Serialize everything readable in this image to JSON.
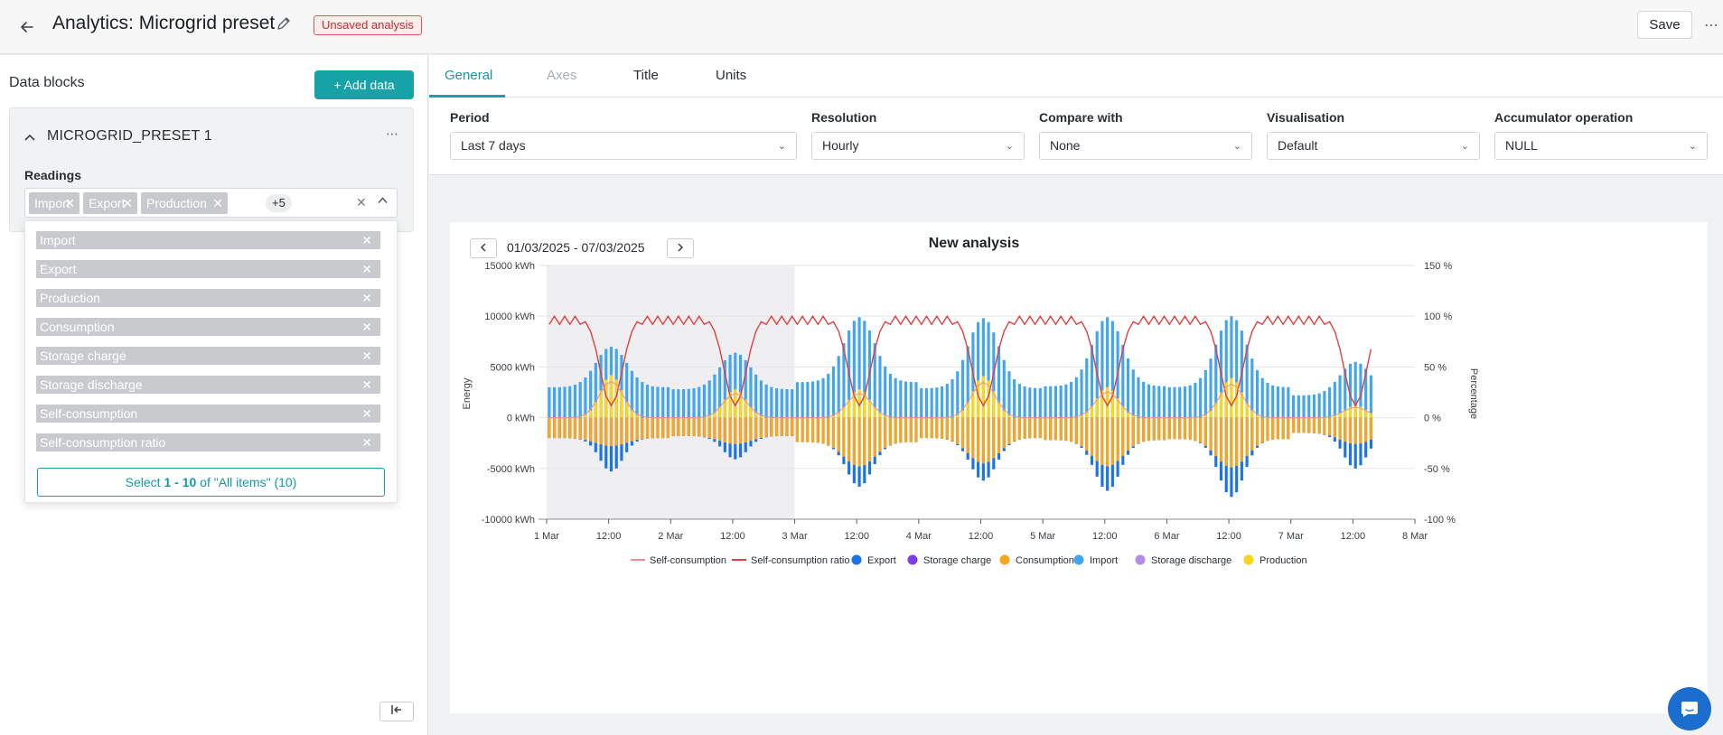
{
  "header": {
    "title": "Analytics: Microgrid preset",
    "badge": "Unsaved analysis",
    "save_label": "Save",
    "more_icon": "more-horizontal-icon"
  },
  "left_panel": {
    "title": "Data blocks",
    "add_label": "+ Add data",
    "block": {
      "name": "MICROGRID_PRESET 1",
      "readings_label": "Readings",
      "chips": [
        "Import",
        "Export",
        "Production"
      ],
      "more_count": "+5"
    },
    "dropdown": {
      "options": [
        "Import",
        "Export",
        "Production",
        "Consumption",
        "Storage charge",
        "Storage discharge",
        "Self-consumption",
        "Self-consumption ratio"
      ],
      "select_prefix": "Select ",
      "select_range": "1 - 10",
      "select_suffix": " of \"All items\" (10)"
    }
  },
  "tabs": [
    {
      "label": "General",
      "state": "active"
    },
    {
      "label": "Axes",
      "state": "disabled"
    },
    {
      "label": "Title",
      "state": "normal"
    },
    {
      "label": "Units",
      "state": "normal"
    }
  ],
  "settings": {
    "period": {
      "label": "Period",
      "value": "Last 7 days"
    },
    "resolution": {
      "label": "Resolution",
      "value": "Hourly"
    },
    "compare": {
      "label": "Compare with",
      "value": "None"
    },
    "visualisation": {
      "label": "Visualisation",
      "value": "Default"
    },
    "accumulator": {
      "label": "Accumulator operation",
      "value": "NULL"
    }
  },
  "date_range": "01/03/2025 - 07/03/2025",
  "chart_data": {
    "type": "bar",
    "title": "New analysis",
    "ylabel": "Energy",
    "y2label": "Percentage",
    "ylim": [
      -10000,
      15000
    ],
    "y2lim": [
      -100,
      150
    ],
    "y_ticks": [
      "15000 kWh",
      "10000 kWh",
      "5000 kWh",
      "0 kWh",
      "-5000 kWh",
      "-10000 kWh"
    ],
    "y2_ticks": [
      "150 %",
      "100 %",
      "50 %",
      "0 %",
      "-50 %",
      "-100 %"
    ],
    "x_ticks": [
      "1 Mar",
      "12:00",
      "2 Mar",
      "12:00",
      "3 Mar",
      "12:00",
      "4 Mar",
      "12:00",
      "5 Mar",
      "12:00",
      "6 Mar",
      "12:00",
      "7 Mar",
      "12:00",
      "8 Mar"
    ],
    "shaded_range": [
      "1 Mar",
      "3 Mar"
    ],
    "legend_position": "bottom",
    "colors": {
      "Export": "#1a73e8",
      "Storage charge": "#7b3fe4",
      "Consumption": "#f5a623",
      "Import": "#41a5f0",
      "Storage discharge": "#b58be8",
      "Production": "#f7d61c",
      "Self-consumption": "#f08d8d",
      "Self-consumption ratio": "#e0403e"
    },
    "legend": [
      {
        "name": "Self-consumption",
        "kind": "line"
      },
      {
        "name": "Self-consumption ratio",
        "kind": "line"
      },
      {
        "name": "Export",
        "kind": "dot"
      },
      {
        "name": "Storage charge",
        "kind": "dot"
      },
      {
        "name": "Consumption",
        "kind": "dot"
      },
      {
        "name": "Import",
        "kind": "dot"
      },
      {
        "name": "Storage discharge",
        "kind": "dot"
      },
      {
        "name": "Production",
        "kind": "dot"
      }
    ],
    "days": [
      {
        "date": "1 Mar",
        "import_peak": 7000,
        "production_peak": 4200,
        "consumption_peak": 2800,
        "export_peak": 5300,
        "base_import": 3000,
        "base_consumption": 2000
      },
      {
        "date": "2 Mar",
        "import_peak": 6400,
        "production_peak": 2800,
        "consumption_peak": 2600,
        "export_peak": 4100,
        "base_import": 2800,
        "base_consumption": 1800
      },
      {
        "date": "3 Mar",
        "import_peak": 9900,
        "production_peak": 2800,
        "consumption_peak": 4800,
        "export_peak": 6800,
        "base_import": 3500,
        "base_consumption": 2400
      },
      {
        "date": "4 Mar",
        "import_peak": 9800,
        "production_peak": 4100,
        "consumption_peak": 4500,
        "export_peak": 6200,
        "base_import": 2900,
        "base_consumption": 2000
      },
      {
        "date": "5 Mar",
        "import_peak": 9900,
        "production_peak": 3000,
        "consumption_peak": 4800,
        "export_peak": 7200,
        "base_import": 3100,
        "base_consumption": 2200
      },
      {
        "date": "6 Mar",
        "import_peak": 10000,
        "production_peak": 3900,
        "consumption_peak": 4900,
        "export_peak": 7800,
        "base_import": 3000,
        "base_consumption": 2100
      },
      {
        "date": "7 Mar",
        "import_peak": 5500,
        "production_peak": 1200,
        "consumption_peak": 2600,
        "export_peak": 5000,
        "base_import": 2200,
        "base_consumption": 1500
      }
    ]
  }
}
